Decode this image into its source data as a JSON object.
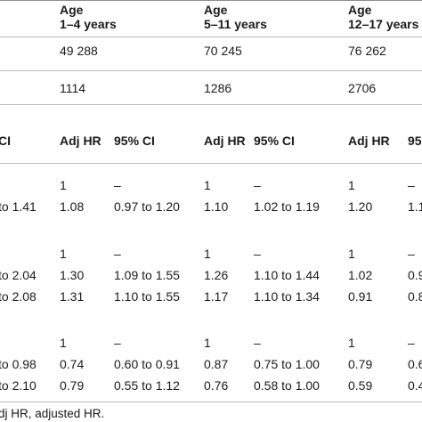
{
  "header": {
    "age_label": "Age",
    "groups": [
      "1–4 years",
      "5–11 years",
      "12–17 years"
    ]
  },
  "n_row": [
    "49 288",
    "70 245",
    "76 262"
  ],
  "events_row": [
    "1114",
    "1286",
    "2706"
  ],
  "subheader": {
    "left_clip": "CI",
    "adj_hr": "Adj HR",
    "ci": "95% CI",
    "ci_clip": "95"
  },
  "rows": [
    {
      "left": "",
      "g1": [
        "1",
        "–"
      ],
      "g2": [
        "1",
        "–"
      ],
      "g3": [
        "1",
        "–"
      ]
    },
    {
      "left": "to 1.41",
      "g1": [
        "1.08",
        "0.97 to 1.20"
      ],
      "g2": [
        "1.10",
        "1.02 to 1.19"
      ],
      "g3": [
        "1.20",
        "1.1"
      ]
    },
    {
      "left": "",
      "g1": [
        "1",
        "–"
      ],
      "g2": [
        "1",
        "–"
      ],
      "g3": [
        "1",
        "–"
      ]
    },
    {
      "left": "to 2.04",
      "g1": [
        "1.30",
        "1.09 to 1.55"
      ],
      "g2": [
        "1.26",
        "1.10 to 1.44"
      ],
      "g3": [
        "1.02",
        "0.9"
      ]
    },
    {
      "left": "to 2.08",
      "g1": [
        "1.31",
        "1.10 to 1.55"
      ],
      "g2": [
        "1.17",
        "1.10 to 1.34"
      ],
      "g3": [
        "0.91",
        "0.8"
      ]
    },
    {
      "left": "",
      "g1": [
        "1",
        "–"
      ],
      "g2": [
        "1",
        "–"
      ],
      "g3": [
        "1",
        "–"
      ]
    },
    {
      "left": "to 0.98",
      "g1": [
        "0.74",
        "0.60 to 0.91"
      ],
      "g2": [
        "0.87",
        "0.75 to 1.00"
      ],
      "g3": [
        "0.79",
        "0.6"
      ]
    },
    {
      "left": "to 2.10",
      "g1": [
        "0.79",
        "0.55 to 1.12"
      ],
      "g2": [
        "0.76",
        "0.58 to 1.00"
      ],
      "g3": [
        "0.59",
        "0.4"
      ]
    }
  ],
  "footnote": "dj HR, adjusted HR."
}
